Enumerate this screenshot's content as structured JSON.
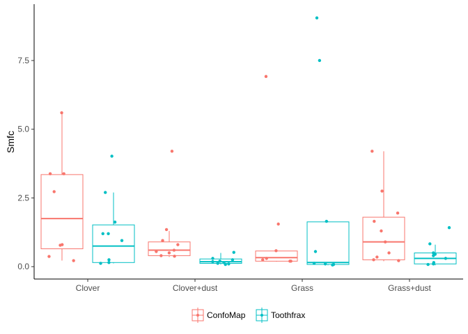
{
  "chart_data": {
    "type": "boxplot",
    "xlabel": "",
    "ylabel": "Smfc",
    "categories": [
      "Clover",
      "Clover+dust",
      "Grass",
      "Grass+dust"
    ],
    "y_ticks": [
      0.0,
      2.5,
      5.0,
      7.5
    ],
    "y_tick_labels": [
      "0.0",
      "2.5",
      "5.0",
      "7.5"
    ],
    "ylim": [
      -0.45,
      9.55
    ],
    "grid": false,
    "legend_position": "bottom",
    "series": [
      {
        "name": "ConfoMap",
        "color": "#F8766D",
        "boxes": [
          {
            "category": "Clover",
            "q1": 0.65,
            "median": 1.75,
            "q3": 3.35,
            "whisker_low": 0.22,
            "whisker_high": 5.6
          },
          {
            "category": "Clover+dust",
            "q1": 0.4,
            "median": 0.6,
            "q3": 0.9,
            "whisker_low": 0.35,
            "whisker_high": 1.3
          },
          {
            "category": "Grass",
            "q1": 0.2,
            "median": 0.33,
            "q3": 0.57,
            "whisker_low": 0.18,
            "whisker_high": 0.6
          },
          {
            "category": "Grass+dust",
            "q1": 0.25,
            "median": 0.9,
            "q3": 1.8,
            "whisker_low": 0.2,
            "whisker_high": 4.2
          }
        ],
        "points": [
          {
            "category": "Clover",
            "values": [
              5.6,
              3.38,
              3.38,
              2.73,
              0.78,
              0.8,
              0.37,
              0.22
            ]
          },
          {
            "category": "Clover+dust",
            "values": [
              4.2,
              1.35,
              0.95,
              0.8,
              0.6,
              0.55,
              0.5,
              0.4,
              0.38
            ]
          },
          {
            "category": "Grass",
            "values": [
              6.92,
              1.55,
              0.58,
              0.3,
              0.25,
              0.2,
              0.2
            ]
          },
          {
            "category": "Grass+dust",
            "values": [
              4.2,
              2.75,
              1.95,
              1.65,
              1.3,
              0.9,
              0.5,
              0.35,
              0.25,
              0.22
            ]
          }
        ]
      },
      {
        "name": "Toothfrax",
        "color": "#00BFC4",
        "boxes": [
          {
            "category": "Clover",
            "q1": 0.15,
            "median": 0.75,
            "q3": 1.52,
            "whisker_low": 0.12,
            "whisker_high": 2.7
          },
          {
            "category": "Clover+dust",
            "q1": 0.12,
            "median": 0.18,
            "q3": 0.28,
            "whisker_low": 0.08,
            "whisker_high": 0.5
          },
          {
            "category": "Grass",
            "q1": 0.08,
            "median": 0.15,
            "q3": 1.63,
            "whisker_low": 0.05,
            "whisker_high": 1.65
          },
          {
            "category": "Grass+dust",
            "q1": 0.1,
            "median": 0.3,
            "q3": 0.5,
            "whisker_low": 0.05,
            "whisker_high": 0.8
          }
        ],
        "points": [
          {
            "category": "Clover",
            "values": [
              4.02,
              2.7,
              1.62,
              1.2,
              1.2,
              0.95,
              0.25,
              0.15,
              0.12
            ]
          },
          {
            "category": "Clover+dust",
            "values": [
              0.52,
              0.3,
              0.25,
              0.2,
              0.18,
              0.15,
              0.12,
              0.1,
              0.08
            ]
          },
          {
            "category": "Grass",
            "values": [
              9.05,
              7.5,
              1.65,
              0.55,
              0.12,
              0.1,
              0.08,
              0.06
            ]
          },
          {
            "category": "Grass+dust",
            "values": [
              1.42,
              0.83,
              0.5,
              0.45,
              0.4,
              0.3,
              0.15,
              0.1,
              0.08
            ]
          }
        ]
      }
    ]
  }
}
